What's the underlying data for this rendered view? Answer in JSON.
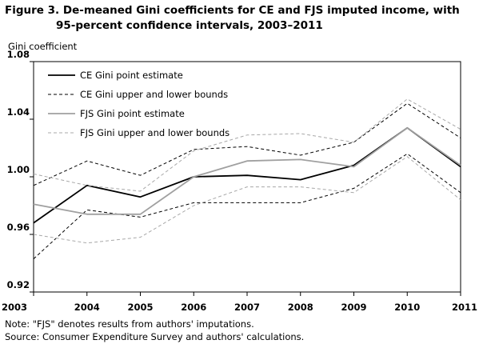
{
  "title_line1": "Figure 3. De-meaned Gini coefficients for CE and FJS imputed income, with",
  "title_line2": "95-percent confidence intervals, 2003–2011",
  "note": "Note: \"FJS\" denotes results from authors' imputations.",
  "source": "Source: Consumer Expenditure Survey and authors' calculations.",
  "chart_data": {
    "type": "line",
    "ylabel": "Gini coefficient",
    "xlabel": "",
    "x": [
      "2003",
      "2004",
      "2005",
      "2006",
      "2007",
      "2008",
      "2009",
      "2010",
      "2011"
    ],
    "ylim": [
      0.92,
      1.08
    ],
    "yticks": [
      "0.92",
      "0.96",
      "1.00",
      "1.04",
      "1.08"
    ],
    "grid": false,
    "legend": "top-left inside plot",
    "legend_entries": [
      "CE Gini point estimate",
      "CE Gini upper and lower bounds",
      "FJS Gini point estimate",
      "FJS Gini upper and lower bounds"
    ],
    "series": [
      {
        "name": "CE Gini point estimate",
        "legend_index": 0,
        "color": "#000000",
        "dash": false,
        "width": 1.8,
        "values": [
          0.968,
          0.994,
          0.986,
          1.0,
          1.001,
          0.998,
          1.008,
          1.034,
          1.007
        ]
      },
      {
        "name": "CE Gini upper and lower bounds",
        "legend_index": 1,
        "color": "#000000",
        "dash": true,
        "width": 1,
        "values": [
          0.994,
          1.011,
          1.001,
          1.019,
          1.021,
          1.015,
          1.024,
          1.051,
          1.027
        ]
      },
      {
        "name": "CE Gini upper and lower bounds",
        "legend_index": -1,
        "color": "#000000",
        "dash": true,
        "width": 1,
        "values": [
          0.943,
          0.977,
          0.972,
          0.982,
          0.982,
          0.982,
          0.992,
          1.016,
          0.989
        ]
      },
      {
        "name": "FJS Gini point estimate",
        "legend_index": 2,
        "color": "#a0a0a0",
        "dash": false,
        "width": 1.8,
        "values": [
          0.981,
          0.974,
          0.974,
          1.0,
          1.011,
          1.012,
          1.007,
          1.034,
          1.008
        ]
      },
      {
        "name": "FJS Gini upper and lower bounds",
        "legend_index": 3,
        "color": "#a8a8a8",
        "dash": true,
        "width": 1,
        "values": [
          1.002,
          0.994,
          0.99,
          1.018,
          1.029,
          1.03,
          1.024,
          1.054,
          1.033
        ]
      },
      {
        "name": "FJS Gini upper and lower bounds",
        "legend_index": -1,
        "color": "#a8a8a8",
        "dash": true,
        "width": 1,
        "values": [
          0.96,
          0.954,
          0.958,
          0.98,
          0.993,
          0.993,
          0.989,
          1.014,
          0.984
        ]
      }
    ]
  }
}
